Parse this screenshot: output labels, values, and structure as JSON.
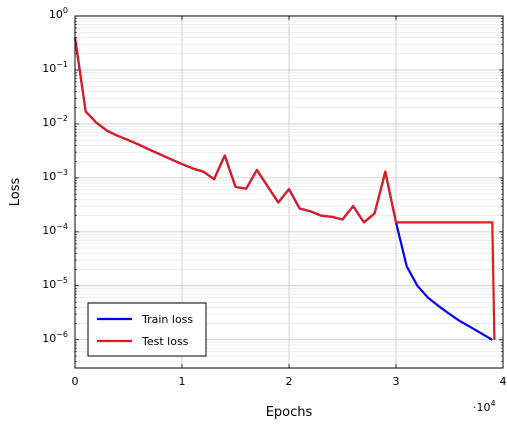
{
  "chart_data": {
    "type": "line",
    "xlabel": "Epochs",
    "ylabel": "Loss",
    "x_scale_label": "·10",
    "x_scale_exp": "4",
    "xlim": [
      0,
      4
    ],
    "xticks": [
      "0",
      "1",
      "2",
      "3",
      "4"
    ],
    "y_scale": "log",
    "ylim": [
      3e-07,
      1
    ],
    "yticks": [
      {
        "base": "10",
        "exp": "0"
      },
      {
        "base": "10",
        "exp": "−1"
      },
      {
        "base": "10",
        "exp": "−2"
      },
      {
        "base": "10",
        "exp": "−3"
      },
      {
        "base": "10",
        "exp": "−4"
      },
      {
        "base": "10",
        "exp": "−5"
      },
      {
        "base": "10",
        "exp": "−6"
      }
    ],
    "grid": true,
    "legend_position": "bottom-left",
    "series": [
      {
        "name": "Train loss",
        "color": "#0000ff",
        "x": [
          0,
          0.1,
          0.2,
          0.3,
          0.4,
          0.5,
          0.6,
          0.7,
          0.8,
          0.9,
          1.0,
          1.1,
          1.2,
          1.3,
          1.4,
          1.5,
          1.6,
          1.7,
          1.8,
          1.9,
          2.0,
          2.1,
          2.2,
          2.3,
          2.4,
          2.5,
          2.6,
          2.7,
          2.8,
          2.9,
          3.0,
          3.1,
          3.2,
          3.3,
          3.4,
          3.5,
          3.6,
          3.7,
          3.8,
          3.9
        ],
        "y": [
          0.4,
          0.017,
          0.0105,
          0.0075,
          0.006,
          0.005,
          0.0041,
          0.0033,
          0.0027,
          0.0022,
          0.0018,
          0.0015,
          0.0013,
          0.00095,
          0.0026,
          0.00068,
          0.00063,
          0.0014,
          0.0007,
          0.00035,
          0.00062,
          0.00027,
          0.00024,
          0.0002,
          0.00019,
          0.00017,
          0.0003,
          0.00015,
          0.00022,
          0.0013,
          0.00015,
          2.3e-05,
          1e-05,
          6e-06,
          4.2e-06,
          3e-06,
          2.2e-06,
          1.7e-06,
          1.3e-06,
          1e-06
        ]
      },
      {
        "name": "Test loss",
        "color": "#e31a1c",
        "x": [
          0,
          0.1,
          0.2,
          0.3,
          0.4,
          0.5,
          0.6,
          0.7,
          0.8,
          0.9,
          1.0,
          1.1,
          1.2,
          1.3,
          1.4,
          1.5,
          1.6,
          1.7,
          1.8,
          1.9,
          2.0,
          2.1,
          2.2,
          2.3,
          2.4,
          2.5,
          2.6,
          2.7,
          2.8,
          2.9,
          3.0,
          3.9,
          3.92
        ],
        "y": [
          0.4,
          0.017,
          0.0105,
          0.0075,
          0.006,
          0.005,
          0.0041,
          0.0033,
          0.0027,
          0.0022,
          0.0018,
          0.0015,
          0.0013,
          0.00095,
          0.0026,
          0.00068,
          0.00063,
          0.0014,
          0.0007,
          0.00035,
          0.00062,
          0.00027,
          0.00024,
          0.0002,
          0.00019,
          0.00017,
          0.0003,
          0.00015,
          0.00022,
          0.0013,
          0.00015,
          0.00015,
          1e-06
        ]
      }
    ]
  }
}
